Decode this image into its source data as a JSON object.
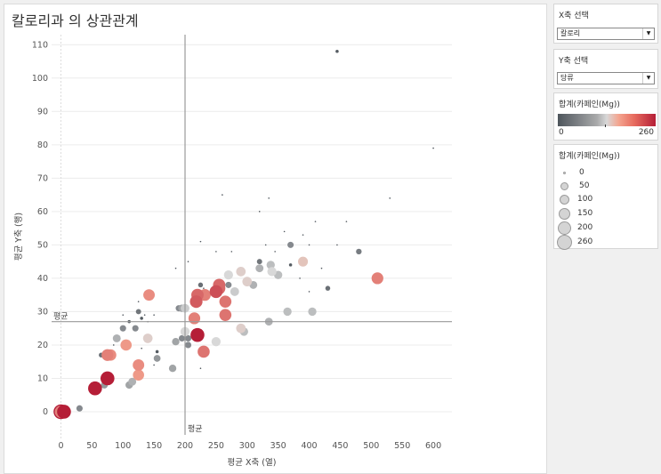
{
  "title": "칼로리과 의 상관관계",
  "x_control": {
    "title": "X축 선택",
    "value": "칼로리"
  },
  "y_control": {
    "title": "Y축 선택",
    "value": "당류"
  },
  "color_legend": {
    "title": "합계(카페인(Mg))",
    "min": "0",
    "max": "260",
    "colors": [
      "#4e555c",
      "#d8d8d8",
      "#f4a590",
      "#b51e37"
    ]
  },
  "size_legend": {
    "title": "합계(카페인(Mg))",
    "items": [
      "0",
      "50",
      "100",
      "150",
      "200",
      "260"
    ]
  },
  "chart_data": {
    "type": "scatter",
    "xlabel": "평균 X축 (열)",
    "ylabel": "평균 Y축 (행)",
    "xlim": [
      -15,
      630
    ],
    "ylim": [
      -8,
      113
    ],
    "xticks": [
      0,
      50,
      100,
      150,
      200,
      250,
      300,
      350,
      400,
      450,
      500,
      550,
      600
    ],
    "yticks": [
      0,
      10,
      20,
      30,
      40,
      50,
      60,
      70,
      80,
      90,
      100,
      110
    ],
    "ref_x": {
      "value": 200,
      "label": "평균"
    },
    "ref_y": {
      "value": 27,
      "label": "평균"
    },
    "points": [
      {
        "x": 445,
        "y": 108,
        "c": 5
      },
      {
        "x": 600,
        "y": 79,
        "c": 0
      },
      {
        "x": 260,
        "y": 65,
        "c": 0
      },
      {
        "x": 335,
        "y": 64,
        "c": 0
      },
      {
        "x": 530,
        "y": 64,
        "c": 0
      },
      {
        "x": 320,
        "y": 60,
        "c": 0
      },
      {
        "x": 410,
        "y": 57,
        "c": 0
      },
      {
        "x": 460,
        "y": 57,
        "c": 0
      },
      {
        "x": 225,
        "y": 51,
        "c": 0
      },
      {
        "x": 360,
        "y": 54,
        "c": 0
      },
      {
        "x": 390,
        "y": 53,
        "c": 0
      },
      {
        "x": 370,
        "y": 50,
        "c": 40
      },
      {
        "x": 330,
        "y": 50,
        "c": 0
      },
      {
        "x": 400,
        "y": 50,
        "c": 0
      },
      {
        "x": 445,
        "y": 50,
        "c": 0
      },
      {
        "x": 250,
        "y": 48,
        "c": 0
      },
      {
        "x": 275,
        "y": 48,
        "c": 0
      },
      {
        "x": 345,
        "y": 48,
        "c": 0
      },
      {
        "x": 480,
        "y": 48,
        "c": 30
      },
      {
        "x": 205,
        "y": 45,
        "c": 0
      },
      {
        "x": 320,
        "y": 45,
        "c": 25
      },
      {
        "x": 338,
        "y": 44,
        "c": 80
      },
      {
        "x": 390,
        "y": 45,
        "c": 120
      },
      {
        "x": 370,
        "y": 44,
        "c": 5
      },
      {
        "x": 185,
        "y": 43,
        "c": 0
      },
      {
        "x": 320,
        "y": 43,
        "c": 70
      },
      {
        "x": 290,
        "y": 42,
        "c": 110
      },
      {
        "x": 340,
        "y": 42,
        "c": 100
      },
      {
        "x": 420,
        "y": 43,
        "c": 0
      },
      {
        "x": 350,
        "y": 41,
        "c": 80
      },
      {
        "x": 270,
        "y": 41,
        "c": 100
      },
      {
        "x": 385,
        "y": 40,
        "c": 0
      },
      {
        "x": 510,
        "y": 40,
        "c": 180
      },
      {
        "x": 300,
        "y": 39,
        "c": 110
      },
      {
        "x": 310,
        "y": 38,
        "c": 70
      },
      {
        "x": 225,
        "y": 38,
        "c": 20
      },
      {
        "x": 270,
        "y": 38,
        "c": 40
      },
      {
        "x": 230,
        "y": 37,
        "c": 0
      },
      {
        "x": 255,
        "y": 38,
        "c": 200
      },
      {
        "x": 430,
        "y": 37,
        "c": 20
      },
      {
        "x": 400,
        "y": 36,
        "c": 0
      },
      {
        "x": 280,
        "y": 36,
        "c": 90
      },
      {
        "x": 142,
        "y": 35,
        "c": 170
      },
      {
        "x": 220,
        "y": 35,
        "c": 200
      },
      {
        "x": 232,
        "y": 35,
        "c": 180
      },
      {
        "x": 250,
        "y": 36,
        "c": 220
      },
      {
        "x": 255,
        "y": 37,
        "c": 200
      },
      {
        "x": 218,
        "y": 33,
        "c": 210
      },
      {
        "x": 265,
        "y": 33,
        "c": 190
      },
      {
        "x": 125,
        "y": 33,
        "c": 0
      },
      {
        "x": 195,
        "y": 31,
        "c": 60
      },
      {
        "x": 190,
        "y": 31,
        "c": 40
      },
      {
        "x": 200,
        "y": 31,
        "c": 90
      },
      {
        "x": 125,
        "y": 30,
        "c": 25
      },
      {
        "x": 365,
        "y": 30,
        "c": 80
      },
      {
        "x": 405,
        "y": 30,
        "c": 80
      },
      {
        "x": 100,
        "y": 29,
        "c": 0
      },
      {
        "x": 135,
        "y": 29,
        "c": 0
      },
      {
        "x": 150,
        "y": 29,
        "c": 0
      },
      {
        "x": 265,
        "y": 29,
        "c": 190
      },
      {
        "x": 130,
        "y": 28,
        "c": 5
      },
      {
        "x": 215,
        "y": 28,
        "c": 180
      },
      {
        "x": 110,
        "y": 27,
        "c": 5
      },
      {
        "x": 140,
        "y": 27,
        "c": 0
      },
      {
        "x": 335,
        "y": 27,
        "c": 70
      },
      {
        "x": 100,
        "y": 25,
        "c": 40
      },
      {
        "x": 120,
        "y": 25,
        "c": 40
      },
      {
        "x": 290,
        "y": 25,
        "c": 110
      },
      {
        "x": 295,
        "y": 24,
        "c": 80
      },
      {
        "x": 200,
        "y": 24,
        "c": 100
      },
      {
        "x": 220,
        "y": 23,
        "c": 260
      },
      {
        "x": 90,
        "y": 22,
        "c": 70
      },
      {
        "x": 140,
        "y": 22,
        "c": 110
      },
      {
        "x": 195,
        "y": 22,
        "c": 40
      },
      {
        "x": 205,
        "y": 22,
        "c": 40
      },
      {
        "x": 185,
        "y": 21,
        "c": 60
      },
      {
        "x": 250,
        "y": 21,
        "c": 100
      },
      {
        "x": 105,
        "y": 20,
        "c": 160
      },
      {
        "x": 205,
        "y": 20,
        "c": 40
      },
      {
        "x": 85,
        "y": 20,
        "c": 0
      },
      {
        "x": 130,
        "y": 19,
        "c": 0
      },
      {
        "x": 155,
        "y": 18,
        "c": 5
      },
      {
        "x": 230,
        "y": 18,
        "c": 190
      },
      {
        "x": 65,
        "y": 17,
        "c": 20
      },
      {
        "x": 80,
        "y": 17,
        "c": 170
      },
      {
        "x": 75,
        "y": 17,
        "c": 180
      },
      {
        "x": 155,
        "y": 16,
        "c": 50
      },
      {
        "x": 150,
        "y": 14,
        "c": 0
      },
      {
        "x": 125,
        "y": 14,
        "c": 170
      },
      {
        "x": 180,
        "y": 13,
        "c": 60
      },
      {
        "x": 225,
        "y": 13,
        "c": 0
      },
      {
        "x": 125,
        "y": 11,
        "c": 160
      },
      {
        "x": 75,
        "y": 10,
        "c": 260
      },
      {
        "x": 115,
        "y": 9,
        "c": 70
      },
      {
        "x": 110,
        "y": 8,
        "c": 60
      },
      {
        "x": 70,
        "y": 8,
        "c": 50
      },
      {
        "x": 55,
        "y": 7,
        "c": 260
      },
      {
        "x": 30,
        "y": 1,
        "c": 40
      },
      {
        "x": 5,
        "y": 0,
        "c": 260
      },
      {
        "x": 0,
        "y": 0,
        "c": 180
      },
      {
        "x": 3,
        "y": 0,
        "c": 0
      },
      {
        "x": 0,
        "y": 0,
        "c": 0
      }
    ]
  }
}
